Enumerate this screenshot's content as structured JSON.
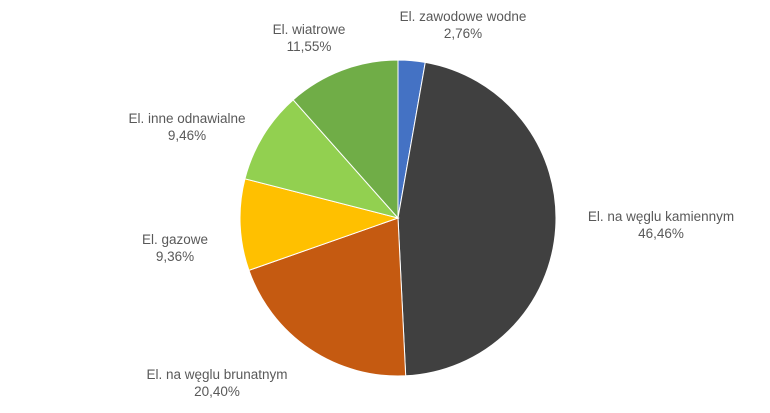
{
  "chart_data": {
    "type": "pie",
    "start_angle_deg": 0,
    "direction": "clockwise",
    "slices": [
      {
        "name": "El. zawodowe wodne",
        "value": 2.76,
        "label": "2,76%",
        "color": "#4472C4"
      },
      {
        "name": "El. na węglu kamiennym",
        "value": 46.46,
        "label": "46,46%",
        "color": "#404040"
      },
      {
        "name": "El. na węglu brunatnym",
        "value": 20.4,
        "label": "20,40%",
        "color": "#C55A11"
      },
      {
        "name": "El. gazowe",
        "value": 9.36,
        "label": "9,36%",
        "color": "#FFC000"
      },
      {
        "name": "El. inne odnawialne",
        "value": 9.46,
        "label": "9,46%",
        "color": "#92D050"
      },
      {
        "name": "El. wiatrowe",
        "value": 11.55,
        "label": "11,55%",
        "color": "#70AD47"
      }
    ]
  }
}
